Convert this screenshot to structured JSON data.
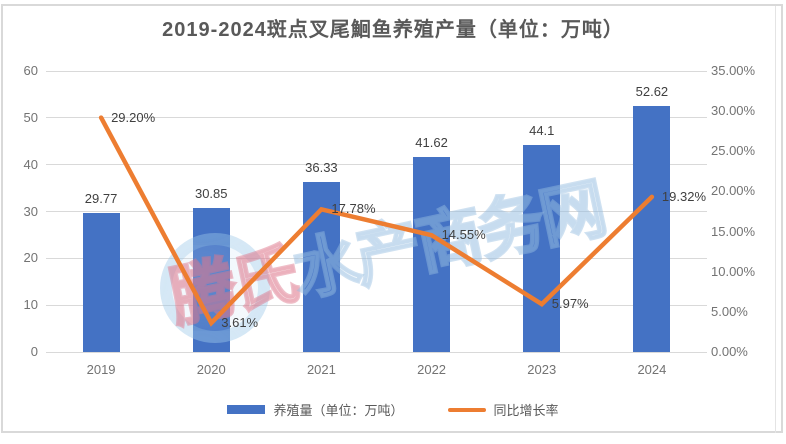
{
  "title": "2019-2024斑点叉尾鮰鱼养殖产量（单位：万吨）",
  "chart_data": {
    "type": "bar+line combo",
    "categories": [
      "2019",
      "2020",
      "2021",
      "2022",
      "2023",
      "2024"
    ],
    "series": [
      {
        "name": "养殖量（单位：万吨）",
        "type": "bar",
        "axis": "left",
        "color": "#4472C4",
        "values": [
          29.77,
          30.85,
          36.33,
          41.62,
          44.1,
          52.62
        ],
        "labels": [
          "29.77",
          "30.85",
          "36.33",
          "41.62",
          "44.1",
          "52.62"
        ]
      },
      {
        "name": "同比增长率",
        "type": "line",
        "axis": "right",
        "color": "#ED7D31",
        "values": [
          29.2,
          3.61,
          17.78,
          14.55,
          5.97,
          19.32
        ],
        "labels": [
          "29.20%",
          "3.61%",
          "17.78%",
          "14.55%",
          "5.97%",
          "19.32%"
        ]
      }
    ],
    "left_axis": {
      "min": 0,
      "max": 60,
      "ticks": [
        "0",
        "10",
        "20",
        "30",
        "40",
        "50",
        "60"
      ]
    },
    "right_axis": {
      "min": 0,
      "max": 35,
      "ticks": [
        "0.00%",
        "5.00%",
        "10.00%",
        "15.00%",
        "20.00%",
        "25.00%",
        "30.00%",
        "35.00%"
      ]
    },
    "grid": true,
    "legend_position": "bottom"
  },
  "legend": {
    "items": [
      {
        "label": "养殖量（单位：万吨）",
        "swatch": "bar",
        "color": "#4472C4"
      },
      {
        "label": "同比增长率",
        "swatch": "line",
        "color": "#ED7D31"
      }
    ]
  },
  "watermark": {
    "prefix": "腾氏",
    "suffix": "水产商务网"
  },
  "colors": {
    "bar": "#4472C4",
    "line": "#ED7D31",
    "gridline": "#d9d9d9",
    "axis_text": "#737373",
    "data_label": "#3f3f3f",
    "title_text": "#595959",
    "frame_border": "#d9d9d9"
  }
}
